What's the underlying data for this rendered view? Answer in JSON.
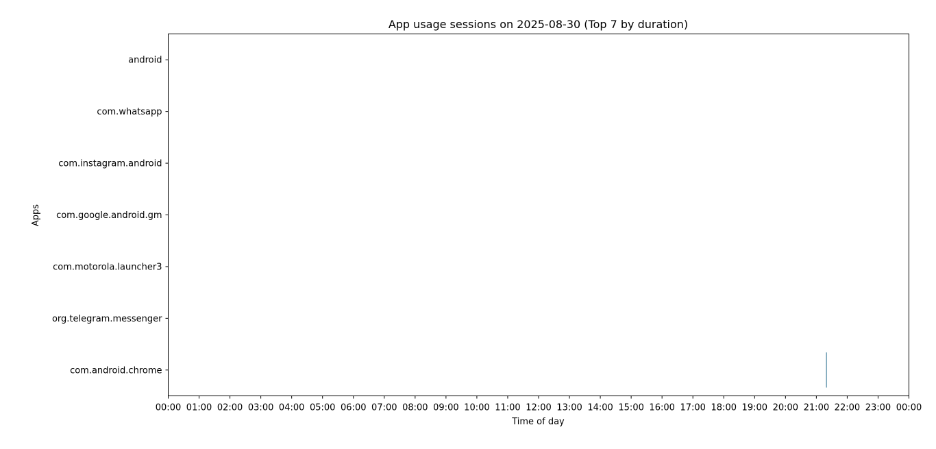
{
  "chart_data": {
    "type": "bar",
    "orientation": "horizontal-timeline",
    "title": "App usage sessions on 2025-08-30 (Top 7 by duration)",
    "xlabel": "Time of day",
    "ylabel": "Apps",
    "categories": [
      "android",
      "com.whatsapp",
      "com.instagram.android",
      "com.google.android.gm",
      "com.motorola.launcher3",
      "org.telegram.messenger",
      "com.android.chrome"
    ],
    "x_ticks": [
      "00:00",
      "01:00",
      "02:00",
      "03:00",
      "04:00",
      "05:00",
      "06:00",
      "07:00",
      "08:00",
      "09:00",
      "10:00",
      "11:00",
      "12:00",
      "13:00",
      "14:00",
      "15:00",
      "16:00",
      "17:00",
      "18:00",
      "19:00",
      "20:00",
      "21:00",
      "22:00",
      "23:00",
      "00:00"
    ],
    "xlim": [
      "00:00",
      "24:00"
    ],
    "grid": false,
    "sessions": [
      {
        "app": "com.android.chrome",
        "start": "21:19",
        "end": "21:20"
      }
    ],
    "bar_color": "#2a6f8f"
  }
}
